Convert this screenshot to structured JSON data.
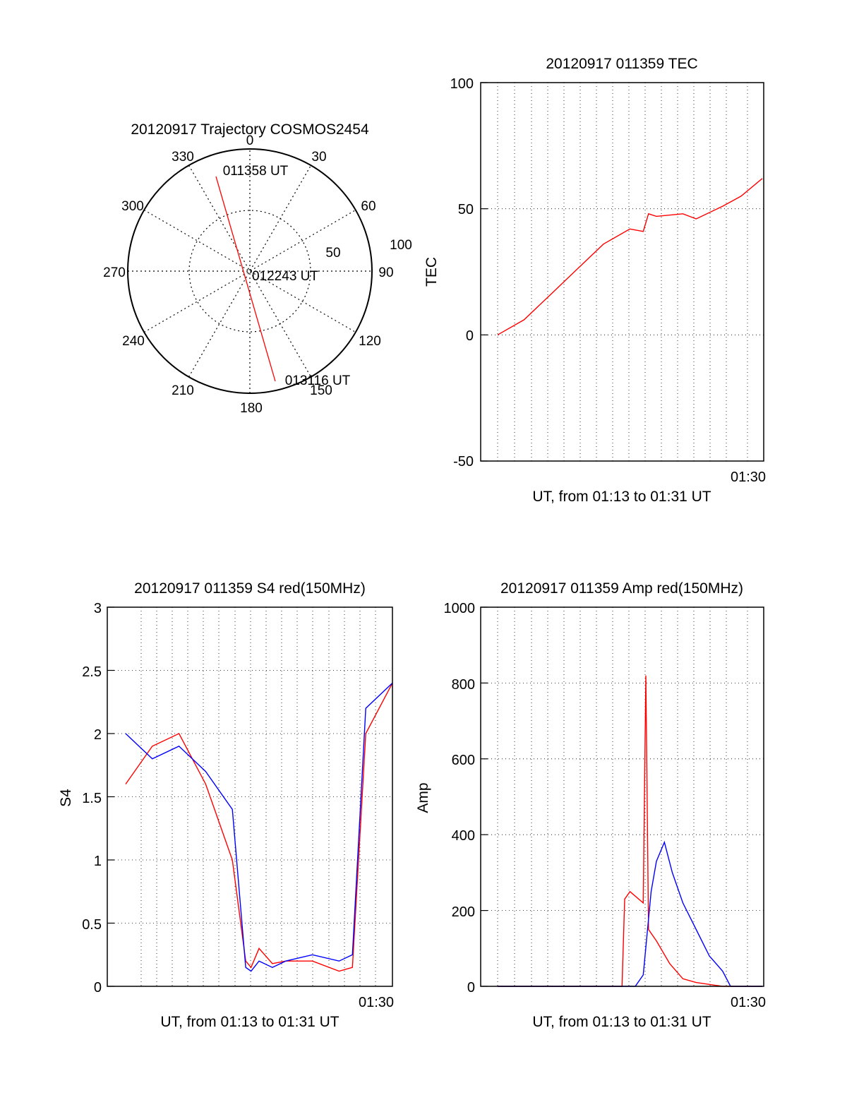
{
  "polar": {
    "title": "20120917 Trajectory COSMOS2454",
    "azimuth_labels": [
      "0",
      "30",
      "60",
      "90",
      "120",
      "150",
      "180",
      "210",
      "240",
      "270",
      "300",
      "330"
    ],
    "radius_labels": [
      "50",
      "100"
    ],
    "start_time": "011358 UT",
    "mid_time": "012243 UT",
    "end_time": "013116 UT",
    "track_color": "#ff0000"
  },
  "chart_data": [
    {
      "type": "line",
      "id": "tec",
      "title": "20120917 011359 TEC",
      "xlabel": "UT, from 01:13 to 01:31 UT",
      "ylabel": "TEC",
      "ylim": [
        -50,
        100
      ],
      "yticks": [
        "100",
        "50",
        "0",
        "-50"
      ],
      "xtick_label": "01:30",
      "series": [
        {
          "color": "#ff0000",
          "x": [
            0.0,
            0.1,
            0.2,
            0.3,
            0.4,
            0.5,
            0.55,
            0.57,
            0.6,
            0.7,
            0.75,
            0.85,
            0.92,
            1.0
          ],
          "values": [
            0,
            6,
            16,
            26,
            36,
            42,
            41,
            48,
            47,
            48,
            46,
            51,
            55,
            62
          ]
        }
      ]
    },
    {
      "type": "line",
      "id": "s4",
      "title": "20120917 011359 S4 red(150MHz)",
      "xlabel": "UT, from 01:13 to 01:31 UT",
      "ylabel": "S4",
      "ylim": [
        0,
        3
      ],
      "yticks": [
        "3",
        "2.5",
        "2",
        "1.5",
        "1",
        "0.5",
        "0"
      ],
      "xtick_label": "01:30",
      "series": [
        {
          "color": "#ff0000",
          "x": [
            0.0,
            0.1,
            0.2,
            0.3,
            0.4,
            0.45,
            0.47,
            0.5,
            0.55,
            0.6,
            0.7,
            0.8,
            0.85,
            0.9,
            1.0
          ],
          "values": [
            1.6,
            1.9,
            2.0,
            1.6,
            1.0,
            0.2,
            0.15,
            0.3,
            0.18,
            0.2,
            0.2,
            0.12,
            0.15,
            2.0,
            2.4
          ]
        },
        {
          "color": "#0000ff",
          "x": [
            0.0,
            0.1,
            0.2,
            0.3,
            0.4,
            0.45,
            0.47,
            0.5,
            0.55,
            0.6,
            0.7,
            0.8,
            0.85,
            0.9,
            1.0
          ],
          "values": [
            2.0,
            1.8,
            1.9,
            1.7,
            1.4,
            0.15,
            0.12,
            0.2,
            0.15,
            0.2,
            0.25,
            0.2,
            0.25,
            2.2,
            2.4
          ]
        }
      ]
    },
    {
      "type": "line",
      "id": "amp",
      "title": "20120917 011359 Amp red(150MHz)",
      "xlabel": "UT, from 01:13 to 01:31 UT",
      "ylabel": "Amp",
      "ylim": [
        0,
        1000
      ],
      "yticks": [
        "1000",
        "800",
        "600",
        "400",
        "200",
        "0"
      ],
      "xtick_label": "01:30",
      "series": [
        {
          "color": "#ff0000",
          "x": [
            0.0,
            0.47,
            0.48,
            0.5,
            0.55,
            0.56,
            0.57,
            0.6,
            0.65,
            0.7,
            0.75,
            0.8,
            0.85,
            1.0
          ],
          "values": [
            0,
            0,
            230,
            250,
            220,
            820,
            150,
            120,
            60,
            20,
            10,
            5,
            0,
            0
          ]
        },
        {
          "color": "#0000ff",
          "x": [
            0.0,
            0.52,
            0.55,
            0.58,
            0.6,
            0.63,
            0.66,
            0.7,
            0.75,
            0.8,
            0.85,
            0.88,
            1.0
          ],
          "values": [
            0,
            0,
            30,
            250,
            330,
            380,
            300,
            220,
            150,
            80,
            40,
            0,
            0
          ]
        }
      ]
    }
  ]
}
